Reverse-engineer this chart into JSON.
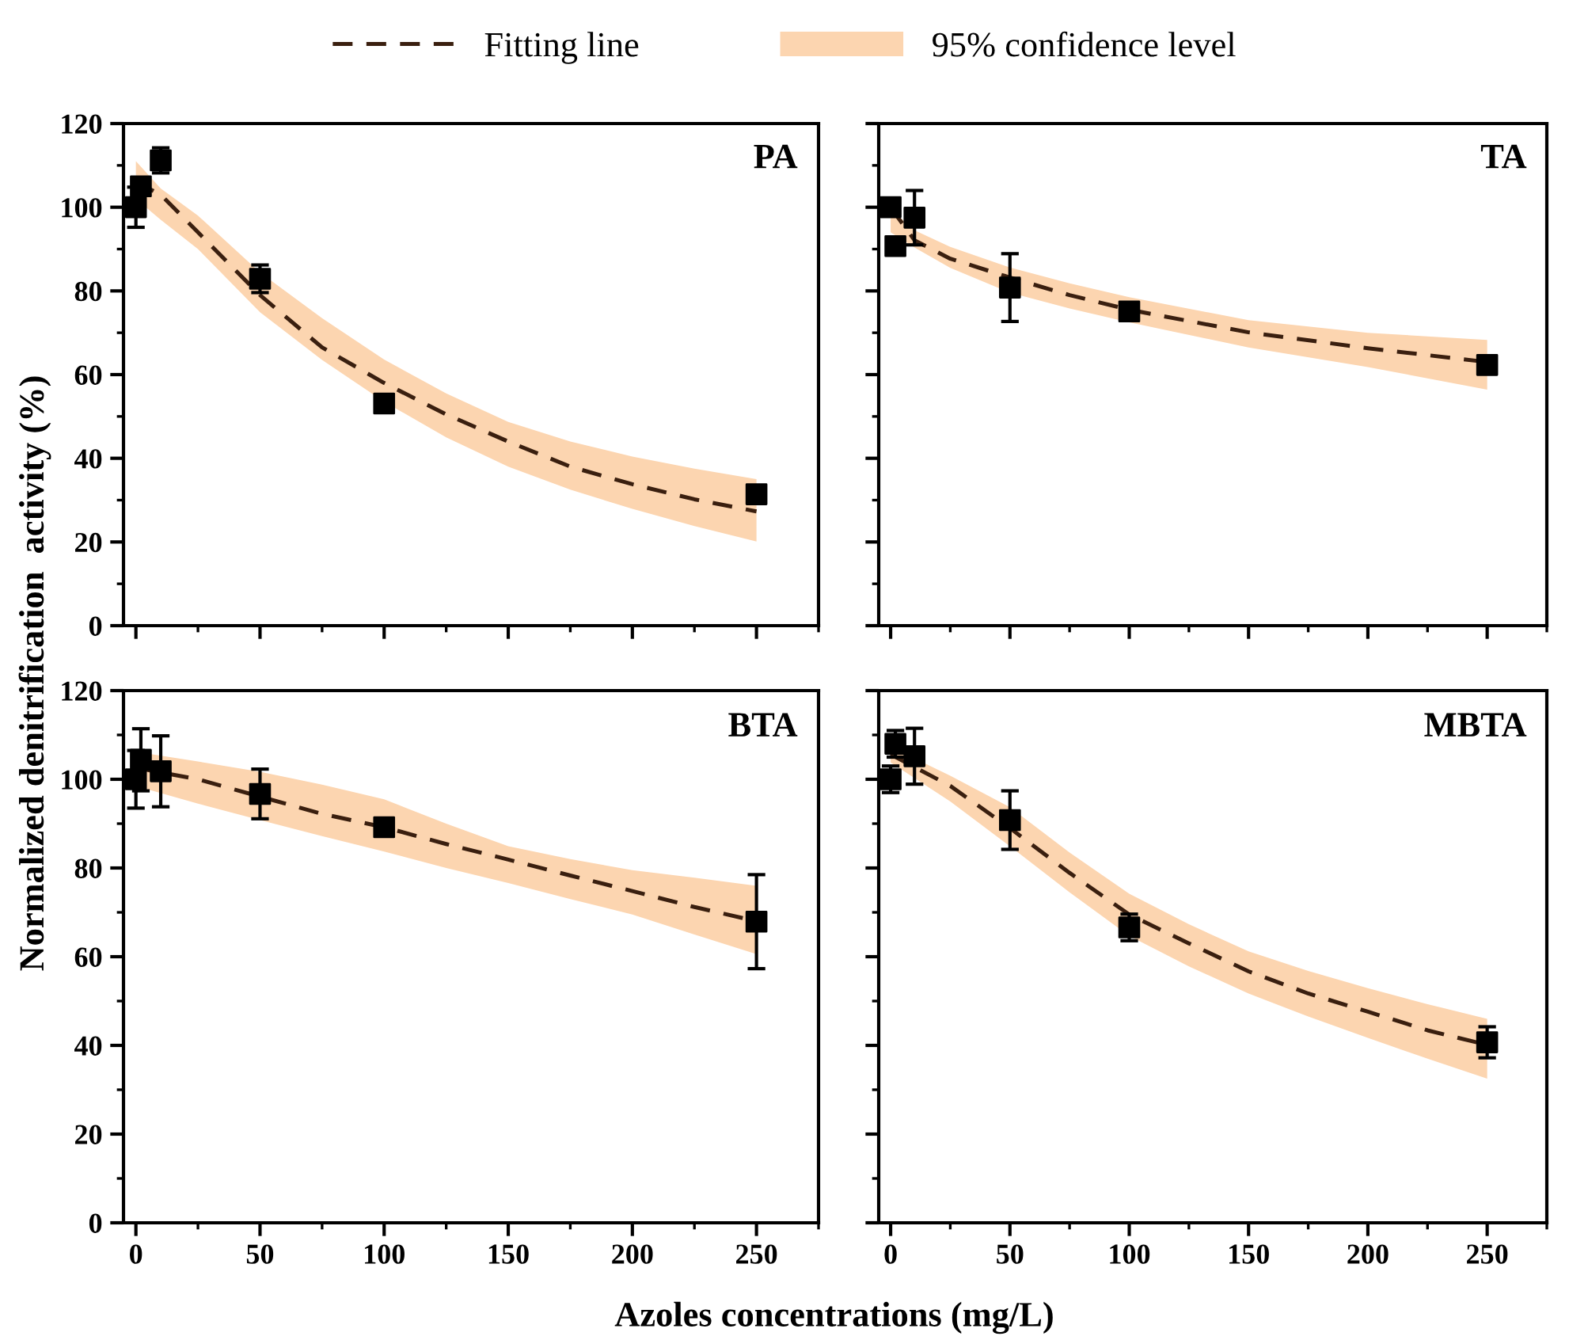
{
  "chart_data": [
    {
      "type": "scatter",
      "ylabel": "Normalized denitrification  activity (%)",
      "annotations": [
        "PA"
      ],
      "legend": "top",
      "tick_labels": "y",
      "xlim": [
        -5,
        275
      ],
      "xticks": [
        0,
        50,
        100,
        150,
        200,
        250
      ],
      "ylim": [
        0,
        120
      ],
      "yticks": [
        0,
        20,
        40,
        60,
        80,
        100,
        120
      ],
      "series": [
        {
          "type": "line",
          "name": "Fitting line",
          "color": "#3a1f0f",
          "line_style": "dashed",
          "marker": "none",
          "x": [
            0,
            10,
            25,
            50,
            75,
            100,
            125,
            150,
            175,
            200,
            225,
            250
          ],
          "values": [
            106,
            103,
            94,
            79,
            66.5,
            58,
            50.5,
            44,
            38,
            33.8,
            30.2,
            27.3
          ],
          "lower": [
            102,
            97,
            90,
            74.9,
            63.5,
            53.5,
            45,
            38,
            32.5,
            27.9,
            23.8,
            20.1
          ],
          "upper": [
            111,
            104.5,
            98,
            84.4,
            73.5,
            63.6,
            55.5,
            48.7,
            44,
            40.4,
            37.5,
            35
          ]
        },
        {
          "type": "area",
          "name": "95% confidence level",
          "color": "#fcd5b0"
        },
        {
          "color": "#000000",
          "marker": "square",
          "x": [
            0,
            2,
            10,
            50,
            100,
            250
          ],
          "values": [
            100,
            105,
            111.2,
            82.9,
            53.1,
            31.4
          ],
          "errors": [
            4.8,
            1.5,
            3,
            3.3,
            1,
            1
          ]
        }
      ]
    },
    {
      "type": "scatter",
      "annotations": [
        "TA"
      ],
      "tick_labels": false,
      "xlim": [
        -5,
        275
      ],
      "xticks": [
        0,
        50,
        100,
        150,
        200,
        250
      ],
      "ylim": [
        0,
        120
      ],
      "yticks": [
        0,
        20,
        40,
        60,
        80,
        100,
        120
      ],
      "series": [
        {
          "type": "line",
          "color": "#3a1f0f",
          "line_style": "dashed",
          "marker": "none",
          "x": [
            0,
            10,
            25,
            50,
            75,
            100,
            150,
            200,
            250
          ],
          "values": [
            100,
            92.1,
            87.7,
            83.2,
            79,
            75.5,
            70.1,
            66.3,
            63
          ],
          "lower": [
            94,
            90.4,
            85.5,
            79.6,
            75.8,
            72.5,
            66.5,
            61.8,
            56.4
          ],
          "upper": [
            99.5,
            94.5,
            90.5,
            85.6,
            81.8,
            78.5,
            73,
            70,
            68.3
          ]
        },
        {
          "type": "area",
          "color": "#fcd5b0"
        },
        {
          "color": "#000000",
          "marker": "square",
          "x": [
            0,
            2,
            10,
            50,
            100,
            250
          ],
          "values": [
            100,
            90.7,
            97.5,
            80.8,
            75.1,
            62.3
          ],
          "errors": [
            1,
            1.5,
            6.5,
            8.1,
            1,
            1
          ]
        }
      ]
    },
    {
      "type": "scatter",
      "xlabel": "Azoles concentrations (mg/L)",
      "annotations": [
        "BTA"
      ],
      "xlim": [
        -5,
        275
      ],
      "xticks": [
        0,
        50,
        100,
        150,
        200,
        250
      ],
      "ylim": [
        0,
        120
      ],
      "yticks": [
        0,
        20,
        40,
        60,
        80,
        100,
        120
      ],
      "series": [
        {
          "type": "line",
          "color": "#3a1f0f",
          "line_style": "dashed",
          "marker": "none",
          "x": [
            0,
            25,
            50,
            75,
            100,
            125,
            150,
            175,
            200,
            225,
            250
          ],
          "values": [
            102.6,
            100,
            96.1,
            92.2,
            89.2,
            85.4,
            81.9,
            78.3,
            74.8,
            71.2,
            68
          ],
          "lower": [
            98.5,
            94.5,
            90.8,
            87.2,
            83.7,
            80,
            76.6,
            73,
            69.5,
            65,
            60.6
          ],
          "upper": [
            106.2,
            104,
            101.7,
            98.8,
            95.5,
            90,
            84.9,
            82,
            79.5,
            77.8,
            76
          ]
        },
        {
          "type": "area",
          "color": "#fcd5b0"
        },
        {
          "color": "#000000",
          "marker": "square",
          "x": [
            0,
            2,
            10,
            50,
            100,
            250
          ],
          "values": [
            100,
            104.4,
            101.8,
            96.7,
            89.2,
            67.9
          ],
          "errors": [
            6.5,
            7,
            8,
            5.6,
            1,
            10.6
          ]
        }
      ]
    },
    {
      "type": "scatter",
      "annotations": [
        "MBTA"
      ],
      "tick_labels": "x",
      "xlim": [
        -5,
        275
      ],
      "xticks": [
        0,
        50,
        100,
        150,
        200,
        250
      ],
      "ylim": [
        0,
        120
      ],
      "yticks": [
        0,
        20,
        40,
        60,
        80,
        100,
        120
      ],
      "series": [
        {
          "type": "line",
          "color": "#3a1f0f",
          "line_style": "dashed",
          "marker": "none",
          "x": [
            0,
            25,
            50,
            75,
            100,
            125,
            150,
            175,
            200,
            225,
            250
          ],
          "values": [
            105.6,
            98.5,
            89,
            78.9,
            69.5,
            63,
            56.7,
            51.7,
            47.6,
            43.4,
            40.1
          ],
          "lower": [
            103.8,
            95,
            84.9,
            74.5,
            64.7,
            57.8,
            51.7,
            46.5,
            41.7,
            37,
            32.5
          ],
          "upper": [
            107.3,
            100.8,
            93.7,
            83.5,
            74.2,
            67.3,
            61.2,
            56.8,
            52.9,
            49.3,
            46
          ]
        },
        {
          "type": "area",
          "color": "#fcd5b0"
        },
        {
          "color": "#000000",
          "marker": "square",
          "x": [
            0,
            2,
            10,
            50,
            100,
            250
          ],
          "values": [
            100,
            108,
            105.2,
            90.8,
            66.6,
            40.7
          ],
          "errors": [
            3,
            3,
            6.3,
            6.6,
            3,
            3.5
          ]
        }
      ]
    }
  ]
}
